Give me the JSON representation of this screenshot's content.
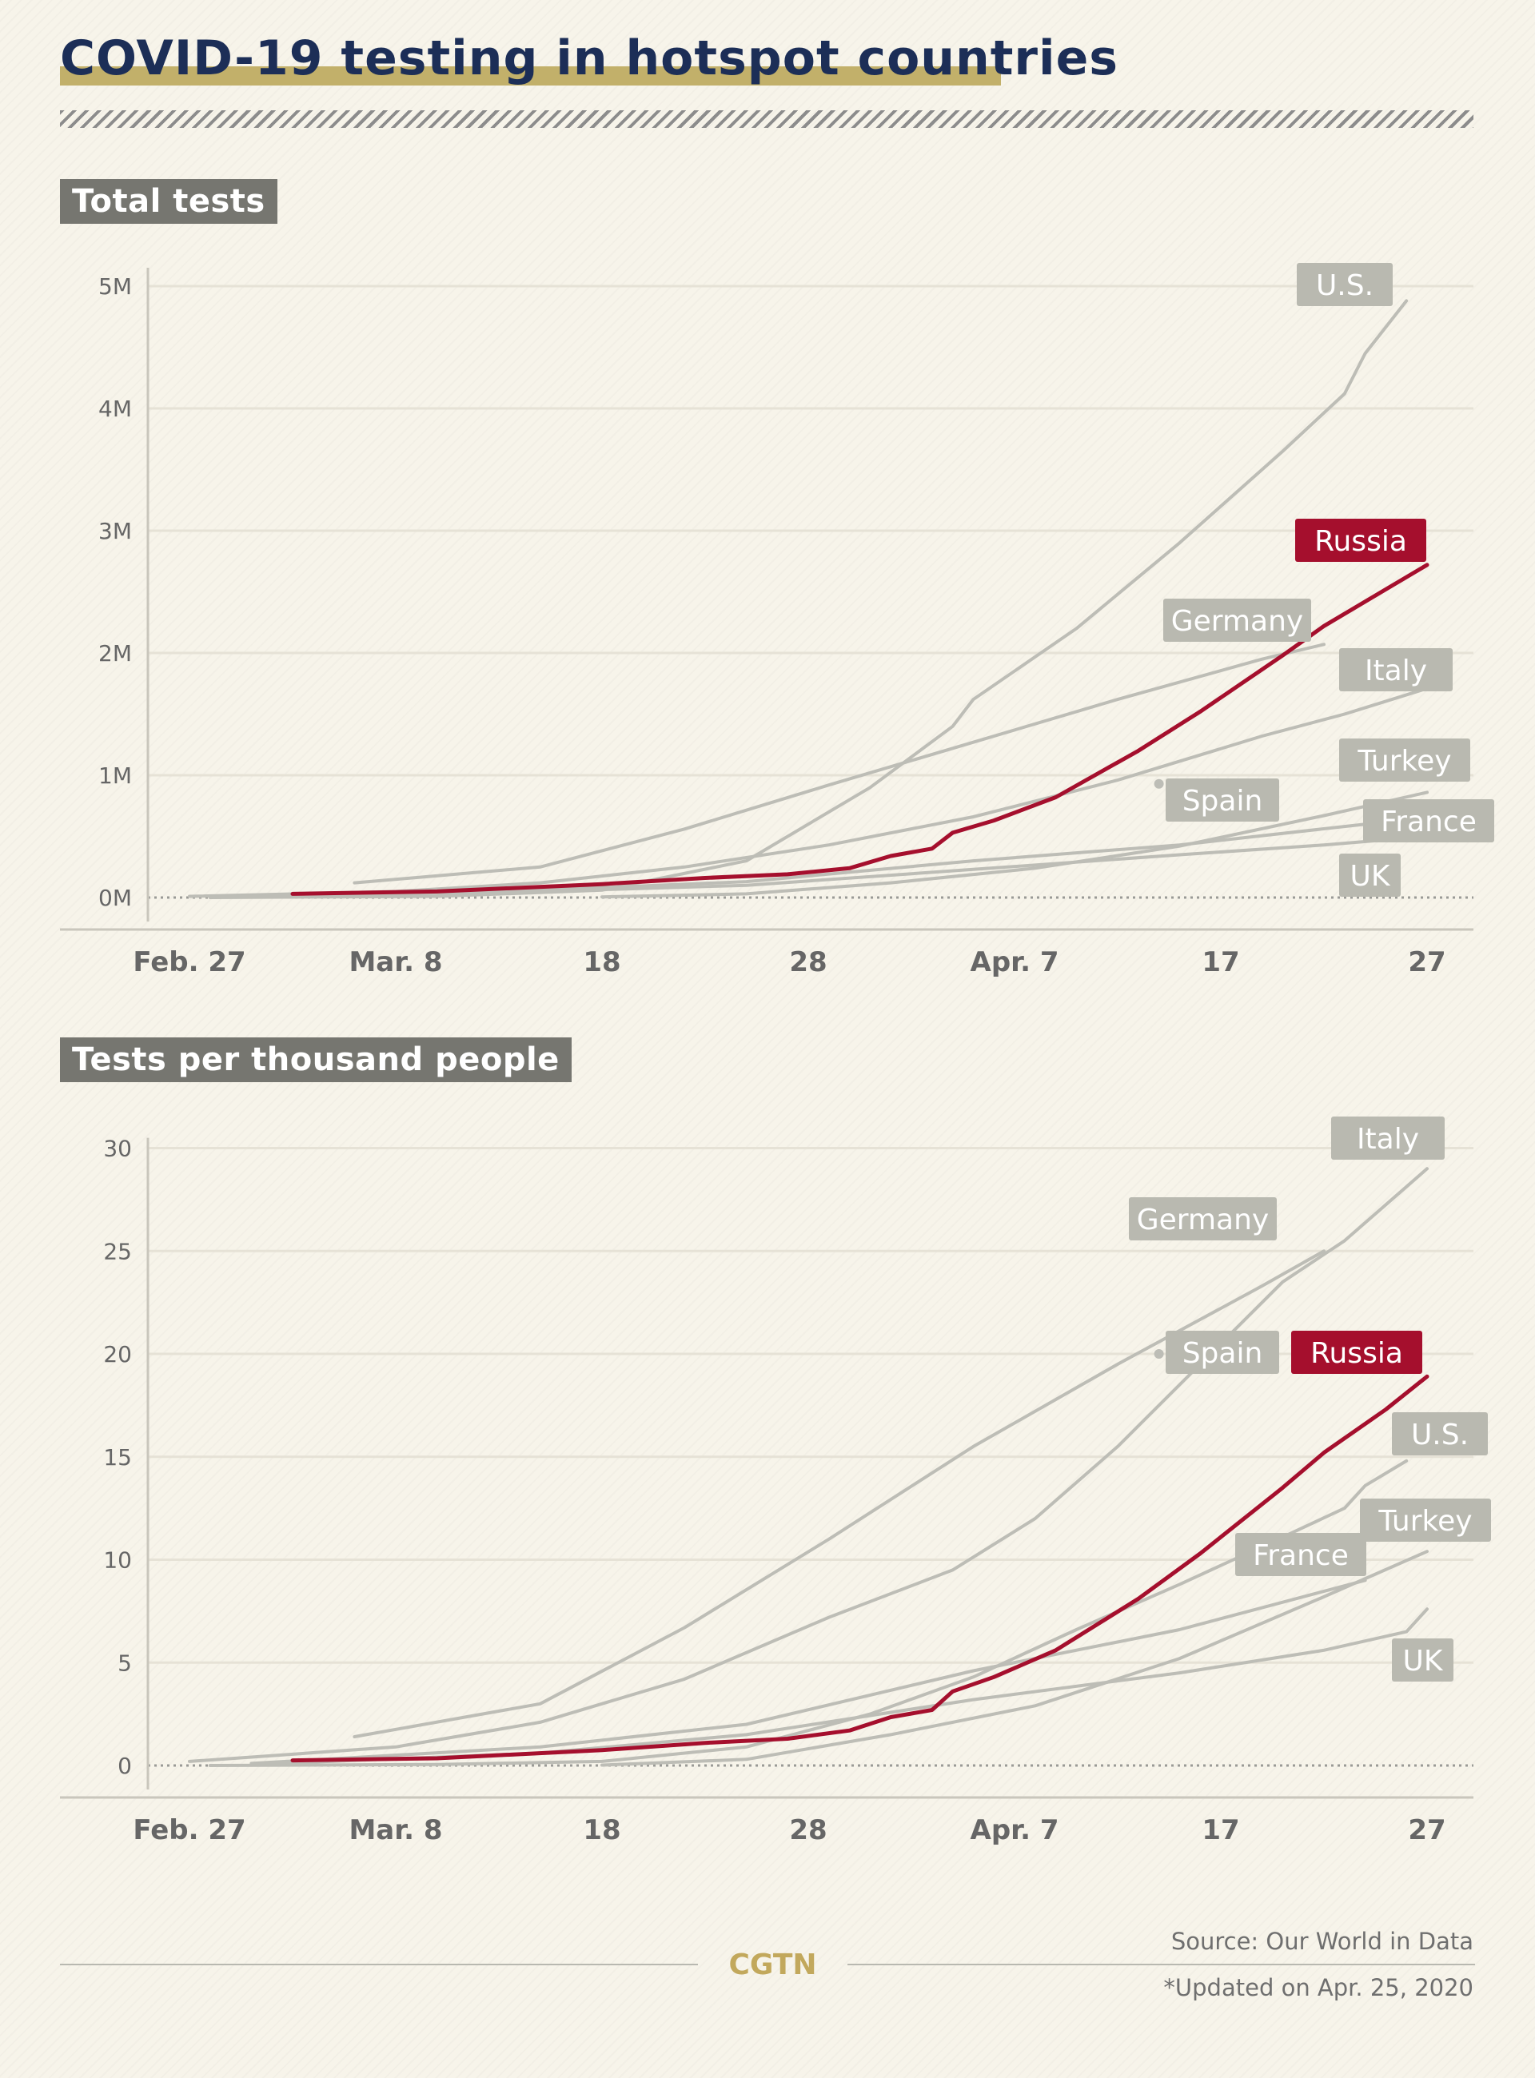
{
  "title": "COVID-19 testing in hotspot countries",
  "source": "Source: Our World in Data",
  "updated": "*Updated on Apr. 25, 2020",
  "brand": "CGTN",
  "colors": {
    "highlight": "#a50f2d",
    "other_series": "#bdbdb6",
    "label_bg": "#b9b9b0",
    "title_text": "#1c2e57",
    "title_underline": "#c2b06a",
    "section_label_bg": "#767670"
  },
  "chart_data": [
    {
      "type": "line",
      "title": "Total tests",
      "x_dates": [
        "Feb. 27",
        "Mar. 8",
        "18",
        "28",
        "Apr. 7",
        "17",
        "27"
      ],
      "y_unit": "millions",
      "yticks": [
        0,
        1,
        2,
        3,
        4,
        5
      ],
      "ytick_labels": [
        "0M",
        "1M",
        "2M",
        "3M",
        "4M",
        "5M"
      ],
      "ylim": [
        0,
        5.15
      ],
      "grid": true,
      "highlight": "Russia",
      "series": [
        {
          "name": "U.S.",
          "points": [
            [
              "2020-02-28",
              0
            ],
            [
              "2020-03-10",
              0.01
            ],
            [
              "2020-03-18",
              0.06
            ],
            [
              "2020-03-25",
              0.3
            ],
            [
              "2020-03-31",
              0.9
            ],
            [
              "2020-04-04",
              1.4
            ],
            [
              "2020-04-05",
              1.62
            ],
            [
              "2020-04-10",
              2.2
            ],
            [
              "2020-04-15",
              2.9
            ],
            [
              "2020-04-20",
              3.65
            ],
            [
              "2020-04-23",
              4.12
            ],
            [
              "2020-04-24",
              4.45
            ],
            [
              "2020-04-26",
              4.88
            ]
          ]
        },
        {
          "name": "Russia",
          "points": [
            [
              "2020-03-03",
              0.03
            ],
            [
              "2020-03-10",
              0.05
            ],
            [
              "2020-03-18",
              0.11
            ],
            [
              "2020-03-23",
              0.16
            ],
            [
              "2020-03-27",
              0.19
            ],
            [
              "2020-03-30",
              0.24
            ],
            [
              "2020-04-01",
              0.34
            ],
            [
              "2020-04-03",
              0.4
            ],
            [
              "2020-04-04",
              0.53
            ],
            [
              "2020-04-06",
              0.63
            ],
            [
              "2020-04-09",
              0.82
            ],
            [
              "2020-04-13",
              1.2
            ],
            [
              "2020-04-16",
              1.52
            ],
            [
              "2020-04-20",
              1.98
            ],
            [
              "2020-04-22",
              2.22
            ],
            [
              "2020-04-25",
              2.52
            ],
            [
              "2020-04-27",
              2.72
            ]
          ]
        },
        {
          "name": "Germany",
          "points": [
            [
              "2020-03-06",
              0.12
            ],
            [
              "2020-03-15",
              0.25
            ],
            [
              "2020-03-22",
              0.56
            ],
            [
              "2020-03-29",
              0.92
            ],
            [
              "2020-04-05",
              1.27
            ],
            [
              "2020-04-12",
              1.62
            ],
            [
              "2020-04-19",
              1.95
            ],
            [
              "2020-04-22",
              2.07
            ]
          ]
        },
        {
          "name": "Italy",
          "points": [
            [
              "2020-02-27",
              0.01
            ],
            [
              "2020-03-08",
              0.05
            ],
            [
              "2020-03-15",
              0.12
            ],
            [
              "2020-03-22",
              0.25
            ],
            [
              "2020-03-29",
              0.43
            ],
            [
              "2020-04-05",
              0.66
            ],
            [
              "2020-04-12",
              0.96
            ],
            [
              "2020-04-19",
              1.32
            ],
            [
              "2020-04-23",
              1.5
            ],
            [
              "2020-04-27",
              1.71
            ]
          ]
        },
        {
          "name": "Turkey",
          "points": [
            [
              "2020-03-18",
              0.005
            ],
            [
              "2020-03-25",
              0.03
            ],
            [
              "2020-04-01",
              0.12
            ],
            [
              "2020-04-08",
              0.24
            ],
            [
              "2020-04-15",
              0.42
            ],
            [
              "2020-04-22",
              0.67
            ],
            [
              "2020-04-27",
              0.86
            ]
          ]
        },
        {
          "name": "France",
          "points": [
            [
              "2020-03-01",
              0.01
            ],
            [
              "2020-03-15",
              0.06
            ],
            [
              "2020-03-25",
              0.13
            ],
            [
              "2020-04-05",
              0.3
            ],
            [
              "2020-04-15",
              0.43
            ],
            [
              "2020-04-24",
              0.6
            ]
          ]
        },
        {
          "name": "UK",
          "points": [
            [
              "2020-03-01",
              0.01
            ],
            [
              "2020-03-15",
              0.05
            ],
            [
              "2020-03-25",
              0.1
            ],
            [
              "2020-04-05",
              0.23
            ],
            [
              "2020-04-15",
              0.35
            ],
            [
              "2020-04-22",
              0.43
            ],
            [
              "2020-04-27",
              0.5
            ]
          ]
        },
        {
          "name": "Spain",
          "points": [
            [
              "2020-04-14",
              0.93
            ]
          ]
        }
      ]
    },
    {
      "type": "line",
      "title": "Tests per thousand people",
      "x_dates": [
        "Feb. 27",
        "Mar. 8",
        "18",
        "28",
        "Apr. 7",
        "17",
        "27"
      ],
      "yticks": [
        0,
        5,
        10,
        15,
        20,
        25,
        30
      ],
      "ylim": [
        0,
        30.5
      ],
      "grid": true,
      "highlight": "Russia",
      "series": [
        {
          "name": "Italy",
          "points": [
            [
              "2020-02-27",
              0.2
            ],
            [
              "2020-03-08",
              0.9
            ],
            [
              "2020-03-15",
              2.1
            ],
            [
              "2020-03-22",
              4.2
            ],
            [
              "2020-03-29",
              7.2
            ],
            [
              "2020-04-04",
              9.5
            ],
            [
              "2020-04-08",
              12.0
            ],
            [
              "2020-04-12",
              15.5
            ],
            [
              "2020-04-16",
              19.5
            ],
            [
              "2020-04-20",
              23.5
            ],
            [
              "2020-04-23",
              25.5
            ],
            [
              "2020-04-27",
              29.0
            ]
          ]
        },
        {
          "name": "Germany",
          "points": [
            [
              "2020-03-06",
              1.4
            ],
            [
              "2020-03-15",
              3.0
            ],
            [
              "2020-03-22",
              6.7
            ],
            [
              "2020-03-29",
              11.0
            ],
            [
              "2020-04-05",
              15.5
            ],
            [
              "2020-04-12",
              19.5
            ],
            [
              "2020-04-19",
              23.3
            ],
            [
              "2020-04-22",
              25.0
            ]
          ]
        },
        {
          "name": "Russia",
          "points": [
            [
              "2020-03-03",
              0.25
            ],
            [
              "2020-03-10",
              0.35
            ],
            [
              "2020-03-18",
              0.75
            ],
            [
              "2020-03-23",
              1.1
            ],
            [
              "2020-03-27",
              1.3
            ],
            [
              "2020-03-30",
              1.7
            ],
            [
              "2020-04-01",
              2.35
            ],
            [
              "2020-04-03",
              2.7
            ],
            [
              "2020-04-04",
              3.6
            ],
            [
              "2020-04-06",
              4.3
            ],
            [
              "2020-04-09",
              5.6
            ],
            [
              "2020-04-13",
              8.1
            ],
            [
              "2020-04-16",
              10.3
            ],
            [
              "2020-04-20",
              13.5
            ],
            [
              "2020-04-22",
              15.2
            ],
            [
              "2020-04-25",
              17.3
            ],
            [
              "2020-04-27",
              18.9
            ]
          ]
        },
        {
          "name": "U.S.",
          "points": [
            [
              "2020-02-28",
              0
            ],
            [
              "2020-03-10",
              0.05
            ],
            [
              "2020-03-18",
              0.2
            ],
            [
              "2020-03-25",
              0.9
            ],
            [
              "2020-03-31",
              2.5
            ],
            [
              "2020-04-05",
              4.3
            ],
            [
              "2020-04-10",
              6.6
            ],
            [
              "2020-04-15",
              8.8
            ],
            [
              "2020-04-20",
              11.1
            ],
            [
              "2020-04-23",
              12.5
            ],
            [
              "2020-04-24",
              13.6
            ],
            [
              "2020-04-26",
              14.8
            ]
          ]
        },
        {
          "name": "Turkey",
          "points": [
            [
              "2020-03-18",
              0.02
            ],
            [
              "2020-03-25",
              0.3
            ],
            [
              "2020-04-01",
              1.5
            ],
            [
              "2020-04-08",
              2.9
            ],
            [
              "2020-04-15",
              5.2
            ],
            [
              "2020-04-22",
              8.2
            ],
            [
              "2020-04-27",
              10.4
            ]
          ]
        },
        {
          "name": "France",
          "points": [
            [
              "2020-03-01",
              0.1
            ],
            [
              "2020-03-15",
              0.9
            ],
            [
              "2020-03-25",
              2.0
            ],
            [
              "2020-04-05",
              4.6
            ],
            [
              "2020-04-15",
              6.6
            ],
            [
              "2020-04-24",
              9.0
            ]
          ]
        },
        {
          "name": "UK",
          "points": [
            [
              "2020-03-01",
              0.05
            ],
            [
              "2020-03-15",
              0.6
            ],
            [
              "2020-03-25",
              1.5
            ],
            [
              "2020-04-05",
              3.2
            ],
            [
              "2020-04-15",
              4.5
            ],
            [
              "2020-04-22",
              5.6
            ],
            [
              "2020-04-26",
              6.5
            ],
            [
              "2020-04-27",
              7.6
            ]
          ]
        },
        {
          "name": "Spain",
          "points": [
            [
              "2020-04-14",
              20.0
            ]
          ]
        }
      ]
    }
  ]
}
